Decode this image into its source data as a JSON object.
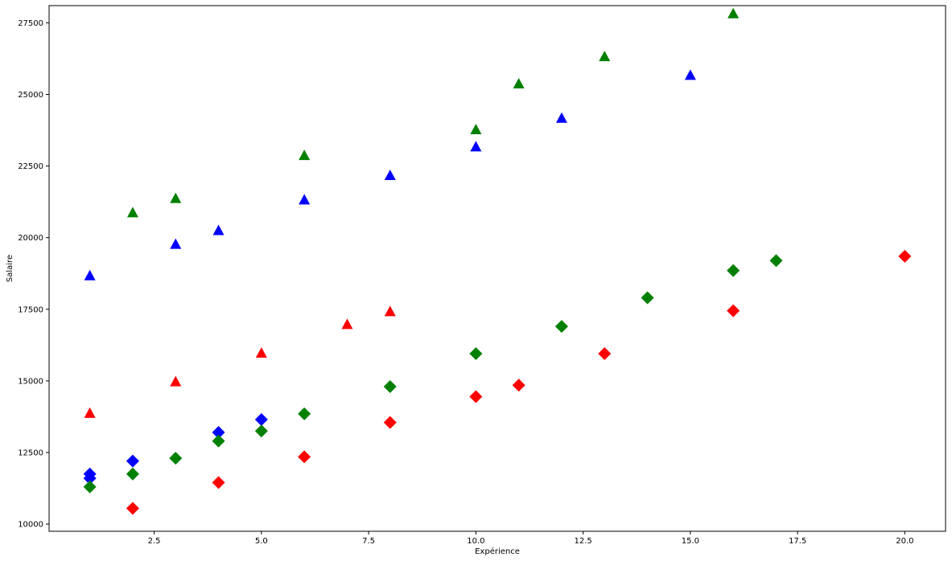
{
  "chart_data": {
    "type": "scatter",
    "title": "",
    "xlabel": "Expérience",
    "ylabel": "Salaire",
    "xlim": [
      0.05,
      20.95
    ],
    "ylim": [
      9750,
      28100
    ],
    "grid": false,
    "xticks": [
      2.5,
      5.0,
      7.5,
      10.0,
      12.5,
      15.0,
      17.5,
      20.0
    ],
    "xtick_labels": [
      "2.5",
      "5.0",
      "7.5",
      "10.0",
      "12.5",
      "15.0",
      "17.5",
      "20.0"
    ],
    "yticks": [
      10000,
      12500,
      15000,
      17500,
      20000,
      22500,
      25000,
      27500
    ],
    "ytick_labels": [
      "10000",
      "12500",
      "15000",
      "17500",
      "20000",
      "22500",
      "25000",
      "27500"
    ],
    "series": [
      {
        "color": "#0000ff",
        "marker": "triangle",
        "points": [
          [
            1,
            18650
          ],
          [
            3,
            19750
          ],
          [
            4,
            20230
          ],
          [
            6,
            21300
          ],
          [
            8,
            22150
          ],
          [
            10,
            23150
          ],
          [
            12,
            24150
          ],
          [
            15,
            25650
          ]
        ]
      },
      {
        "color": "#008000",
        "marker": "triangle",
        "points": [
          [
            2,
            20850
          ],
          [
            3,
            21350
          ],
          [
            6,
            22850
          ],
          [
            10,
            23750
          ],
          [
            11,
            25350
          ],
          [
            13,
            26300
          ],
          [
            16,
            27800
          ]
        ]
      },
      {
        "color": "#ff0000",
        "marker": "triangle",
        "points": [
          [
            1,
            13850
          ],
          [
            3,
            14950
          ],
          [
            5,
            15950
          ],
          [
            7,
            16950
          ],
          [
            8,
            17400
          ]
        ]
      },
      {
        "color": "#0000ff",
        "marker": "diamond",
        "points": [
          [
            1,
            11600
          ],
          [
            1,
            11750
          ],
          [
            2,
            12200
          ],
          [
            4,
            13200
          ],
          [
            5,
            13650
          ]
        ]
      },
      {
        "color": "#008000",
        "marker": "diamond",
        "points": [
          [
            1,
            11300
          ],
          [
            2,
            11750
          ],
          [
            3,
            12300
          ],
          [
            4,
            12900
          ],
          [
            5,
            13250
          ],
          [
            6,
            13850
          ],
          [
            8,
            14800
          ],
          [
            10,
            15950
          ],
          [
            12,
            16900
          ],
          [
            14,
            17900
          ],
          [
            16,
            18850
          ],
          [
            17,
            19200
          ]
        ]
      },
      {
        "color": "#ff0000",
        "marker": "diamond",
        "points": [
          [
            2,
            10550
          ],
          [
            4,
            11450
          ],
          [
            6,
            12350
          ],
          [
            8,
            13550
          ],
          [
            10,
            14450
          ],
          [
            11,
            14850
          ],
          [
            13,
            15950
          ],
          [
            16,
            17450
          ],
          [
            20,
            19350
          ]
        ]
      }
    ]
  }
}
